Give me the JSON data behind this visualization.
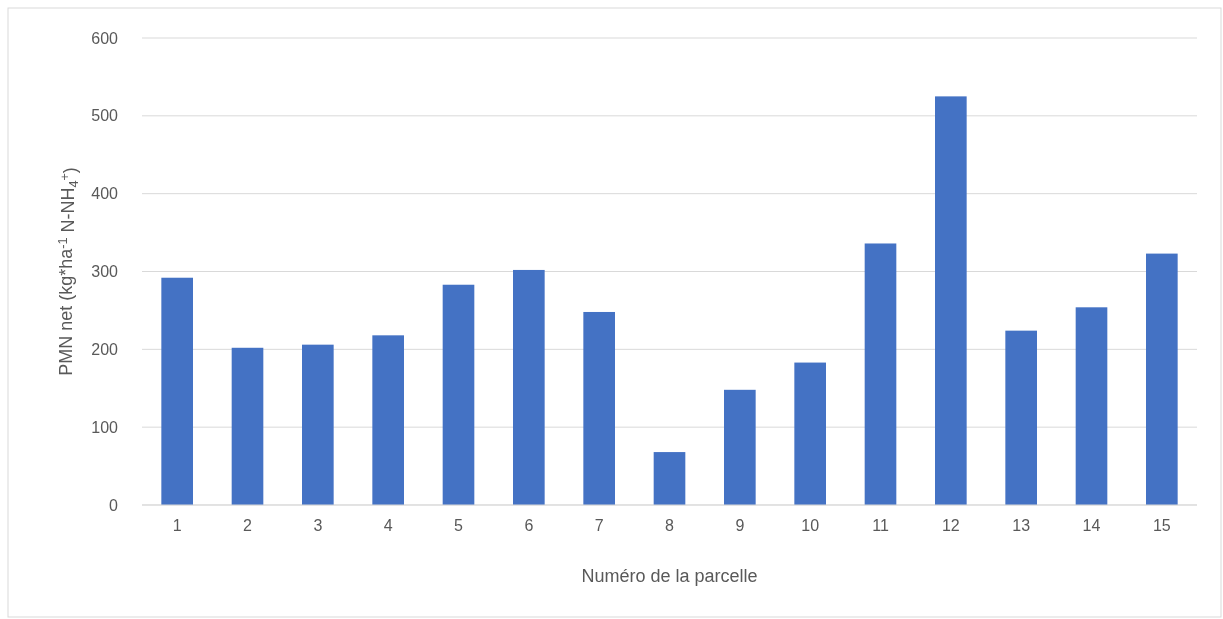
{
  "chart_data": {
    "type": "bar",
    "xlabel": "Numéro de la parcelle",
    "ylabel": "PMN net (kg*ha$^{-1}$ N-NH$_{4}$$^{+}$)",
    "categories": [
      "1",
      "2",
      "3",
      "4",
      "5",
      "6",
      "7",
      "8",
      "9",
      "10",
      "11",
      "12",
      "13",
      "14",
      "15"
    ],
    "values": [
      292,
      202,
      206,
      218,
      283,
      302,
      248,
      68,
      148,
      183,
      336,
      525,
      224,
      254,
      323
    ],
    "color": "#4472c4",
    "ylim": [
      0,
      600
    ],
    "yticks": [
      0,
      100,
      200,
      300,
      400,
      500,
      600
    ],
    "grid": "y"
  }
}
